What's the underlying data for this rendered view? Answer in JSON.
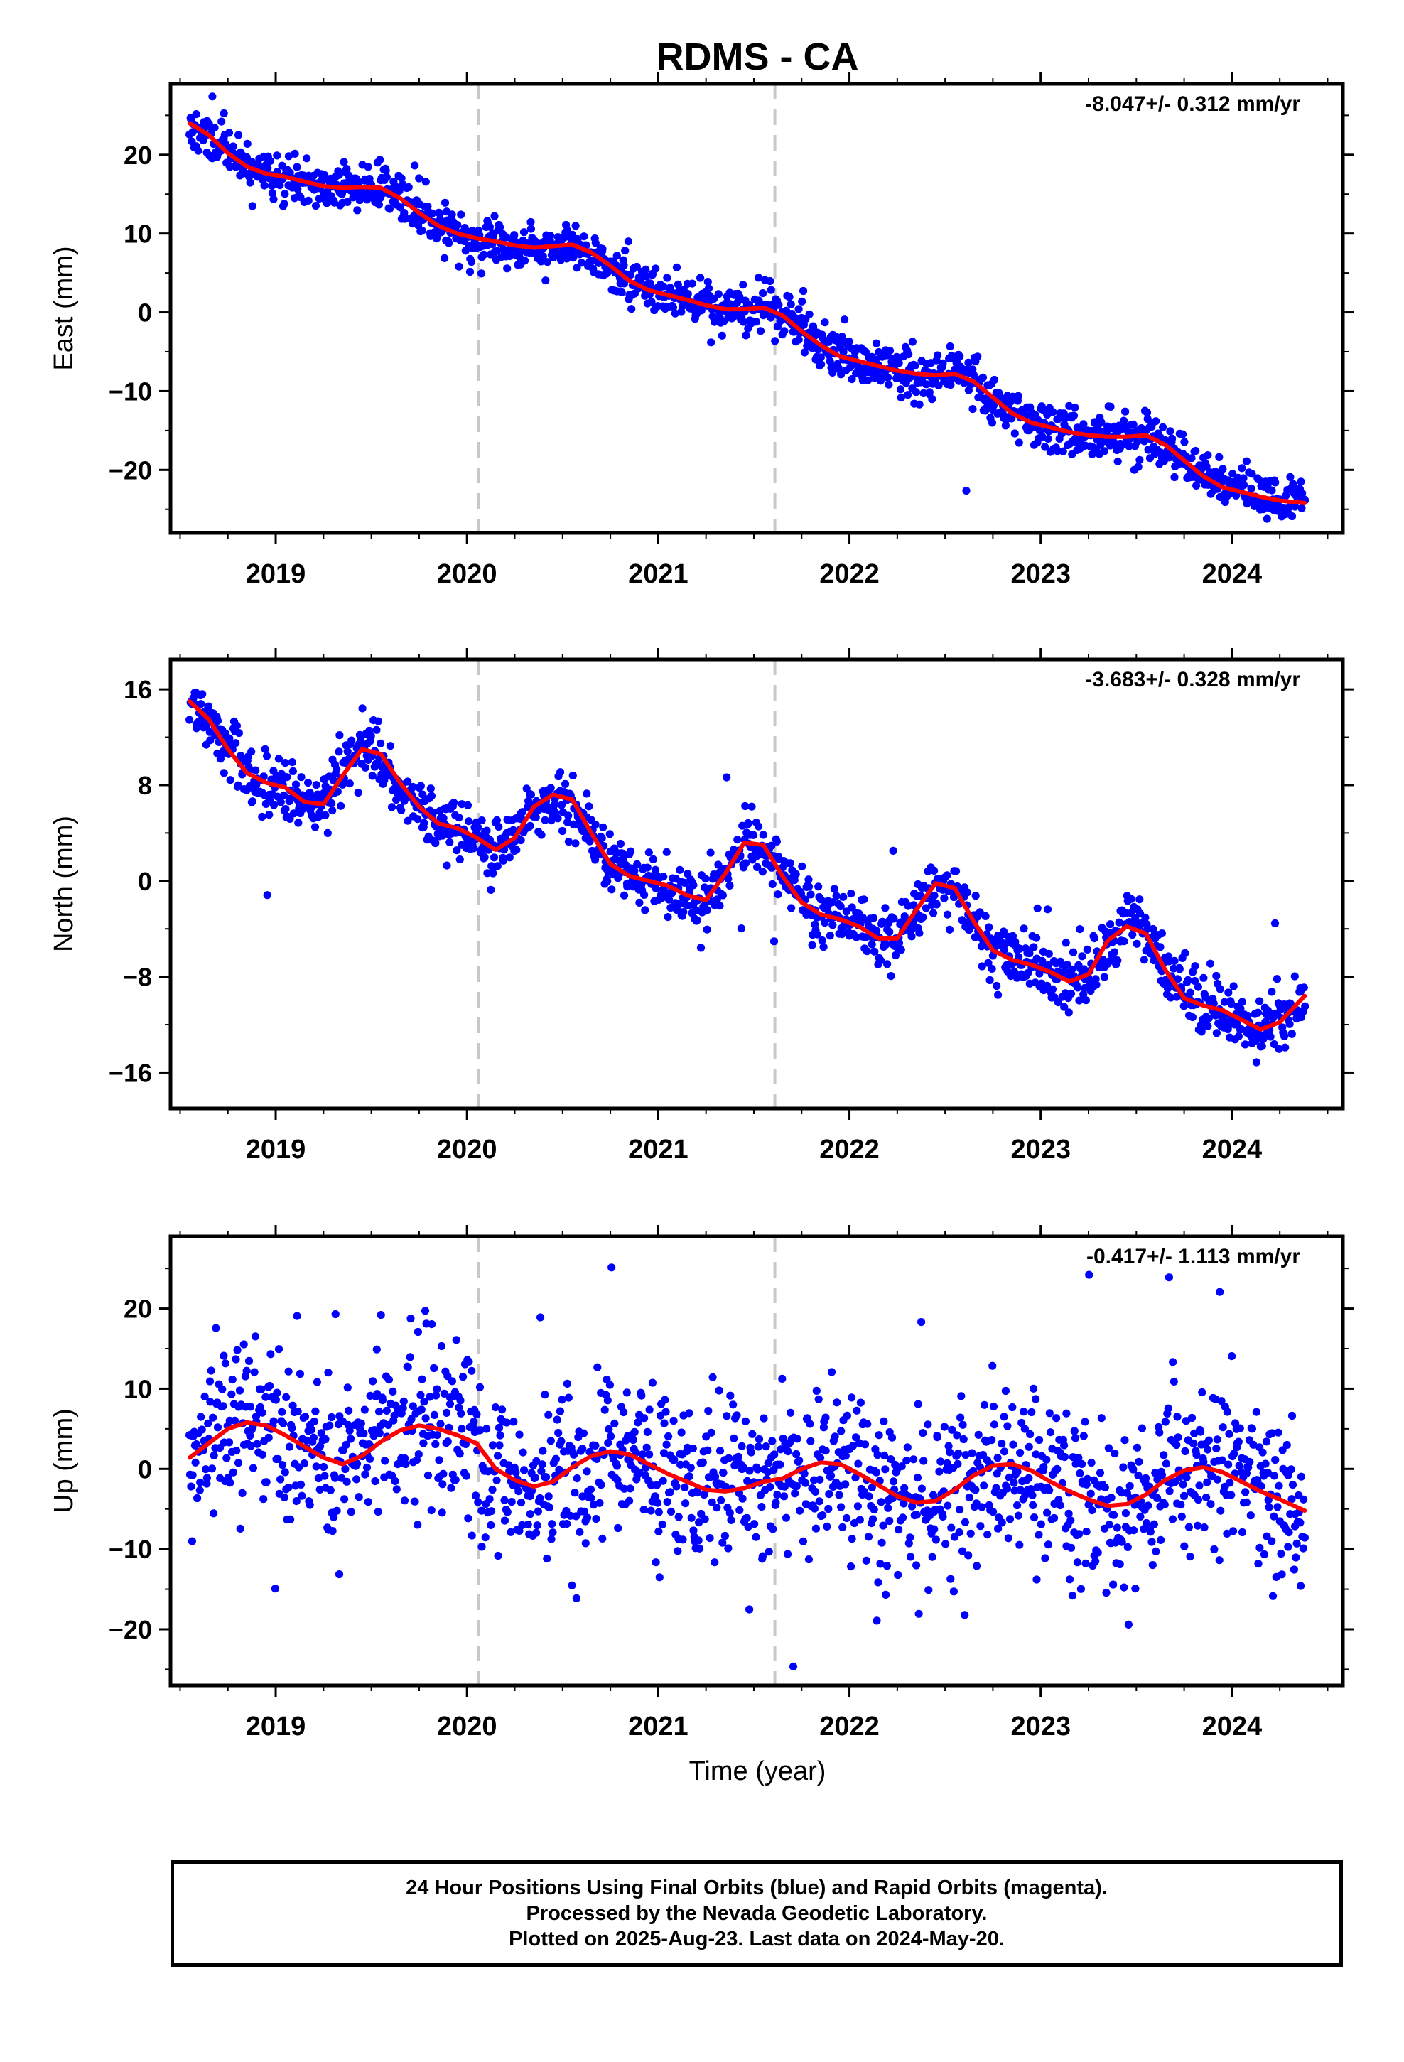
{
  "page": {
    "title": "RDMS - CA",
    "xlabel": "Time (year)"
  },
  "colors": {
    "points": "#0000ff",
    "fit": "#ff0000",
    "frame": "#000000",
    "breaks": "#c8c8c8"
  },
  "chart_data": [
    {
      "type": "scatter",
      "name_key": "east",
      "ylabel": "East (mm)",
      "rate": "-8.047+/- 0.312 mm/yr",
      "xlim": [
        2018.45,
        2024.58
      ],
      "ylim": [
        -28,
        29
      ],
      "yticks": [
        20,
        10,
        0,
        -10,
        -20
      ],
      "ytick_labels": [
        "20",
        "10",
        "0",
        "−10",
        "−20"
      ],
      "xticks": [
        2019,
        2020,
        2021,
        2022,
        2023,
        2024
      ],
      "xtick_labels": [
        "2019",
        "2020",
        "2021",
        "2022",
        "2023",
        "2024"
      ],
      "breaks": [
        2020.06,
        2021.61
      ],
      "fit": {
        "x": [
          2018.55,
          2018.65,
          2018.75,
          2018.85,
          2018.95,
          2019.05,
          2019.15,
          2019.25,
          2019.35,
          2019.45,
          2019.55,
          2019.65,
          2019.75,
          2019.85,
          2019.95,
          2020.05,
          2020.15,
          2020.25,
          2020.35,
          2020.45,
          2020.55,
          2020.65,
          2020.75,
          2020.85,
          2020.95,
          2021.05,
          2021.15,
          2021.25,
          2021.35,
          2021.45,
          2021.55,
          2021.65,
          2021.75,
          2021.85,
          2021.95,
          2022.05,
          2022.15,
          2022.25,
          2022.35,
          2022.45,
          2022.55,
          2022.65,
          2022.75,
          2022.85,
          2022.95,
          2023.05,
          2023.15,
          2023.25,
          2023.35,
          2023.45,
          2023.55,
          2023.65,
          2023.75,
          2023.85,
          2023.95,
          2024.05,
          2024.15,
          2024.25,
          2024.38
        ],
        "y": [
          24.0,
          22.5,
          20.2,
          18.5,
          17.6,
          17.2,
          16.6,
          16.0,
          15.8,
          15.9,
          15.8,
          14.5,
          12.6,
          11.0,
          10.0,
          9.4,
          9.0,
          8.5,
          8.2,
          8.4,
          8.6,
          7.6,
          5.9,
          4.0,
          2.8,
          2.2,
          1.6,
          0.9,
          0.4,
          0.4,
          0.6,
          -0.4,
          -2.4,
          -4.2,
          -5.6,
          -6.2,
          -6.8,
          -7.4,
          -7.8,
          -8.0,
          -7.8,
          -8.8,
          -10.8,
          -12.8,
          -14.0,
          -14.6,
          -15.2,
          -15.6,
          -15.8,
          -15.8,
          -15.6,
          -16.8,
          -18.8,
          -20.8,
          -22.2,
          -22.8,
          -23.4,
          -23.9,
          -24.2
        ]
      },
      "scatter": 1.5,
      "outliers": 0.01,
      "outlier_amp": 4,
      "seed": 11
    },
    {
      "type": "scatter",
      "name_key": "north",
      "ylabel": "North (mm)",
      "rate": "-3.683+/- 0.328 mm/yr",
      "xlim": [
        2018.45,
        2024.58
      ],
      "ylim": [
        -19,
        18.5
      ],
      "yticks": [
        16,
        8,
        0,
        -8,
        -16
      ],
      "ytick_labels": [
        "16",
        "8",
        "0",
        "−8",
        "−16"
      ],
      "xticks": [
        2019,
        2020,
        2021,
        2022,
        2023,
        2024
      ],
      "xtick_labels": [
        "2019",
        "2020",
        "2021",
        "2022",
        "2023",
        "2024"
      ],
      "breaks": [
        2020.06,
        2021.61
      ],
      "fit": {
        "x": [
          2018.55,
          2018.65,
          2018.75,
          2018.85,
          2018.95,
          2019.05,
          2019.15,
          2019.25,
          2019.35,
          2019.45,
          2019.55,
          2019.65,
          2019.75,
          2019.85,
          2019.95,
          2020.05,
          2020.15,
          2020.25,
          2020.35,
          2020.45,
          2020.55,
          2020.65,
          2020.75,
          2020.85,
          2020.95,
          2021.05,
          2021.15,
          2021.25,
          2021.35,
          2021.45,
          2021.55,
          2021.65,
          2021.75,
          2021.85,
          2021.95,
          2022.05,
          2022.15,
          2022.25,
          2022.35,
          2022.45,
          2022.55,
          2022.65,
          2022.75,
          2022.85,
          2022.95,
          2023.05,
          2023.15,
          2023.25,
          2023.35,
          2023.45,
          2023.55,
          2023.65,
          2023.75,
          2023.85,
          2023.95,
          2024.05,
          2024.15,
          2024.25,
          2024.38
        ],
        "y": [
          15.0,
          13.5,
          11.0,
          9.0,
          8.2,
          7.8,
          6.6,
          6.4,
          8.8,
          11.0,
          10.6,
          8.2,
          6.2,
          4.8,
          4.4,
          3.6,
          2.6,
          3.6,
          6.2,
          7.2,
          6.8,
          4.0,
          1.4,
          0.4,
          0.0,
          -0.4,
          -1.2,
          -1.6,
          0.6,
          3.2,
          3.0,
          0.4,
          -1.8,
          -2.8,
          -3.2,
          -3.8,
          -4.8,
          -4.8,
          -2.4,
          -0.2,
          -0.6,
          -3.4,
          -5.8,
          -6.6,
          -7.0,
          -7.6,
          -8.4,
          -7.8,
          -5.0,
          -3.8,
          -4.4,
          -7.4,
          -9.8,
          -10.4,
          -10.8,
          -11.6,
          -12.4,
          -11.8,
          -9.6
        ]
      },
      "scatter": 1.2,
      "outliers": 0.01,
      "outlier_amp": 4,
      "seed": 23
    },
    {
      "type": "scatter",
      "name_key": "up",
      "ylabel": "Up (mm)",
      "rate": "-0.417+/- 1.113 mm/yr",
      "xlim": [
        2018.45,
        2024.58
      ],
      "ylim": [
        -27,
        29
      ],
      "yticks": [
        20,
        10,
        0,
        -10,
        -20
      ],
      "ytick_labels": [
        "20",
        "10",
        "0",
        "−10",
        "−20"
      ],
      "xticks": [
        2019,
        2020,
        2021,
        2022,
        2023,
        2024
      ],
      "xtick_labels": [
        "2019",
        "2020",
        "2021",
        "2022",
        "2023",
        "2024"
      ],
      "breaks": [
        2020.06,
        2021.61
      ],
      "fit": {
        "x": [
          2018.55,
          2018.65,
          2018.75,
          2018.85,
          2018.95,
          2019.05,
          2019.15,
          2019.25,
          2019.35,
          2019.45,
          2019.55,
          2019.65,
          2019.75,
          2019.85,
          2019.95,
          2020.05,
          2020.15,
          2020.25,
          2020.35,
          2020.45,
          2020.55,
          2020.65,
          2020.75,
          2020.85,
          2020.95,
          2021.05,
          2021.15,
          2021.25,
          2021.35,
          2021.45,
          2021.55,
          2021.65,
          2021.75,
          2021.85,
          2021.95,
          2022.05,
          2022.15,
          2022.25,
          2022.35,
          2022.45,
          2022.55,
          2022.65,
          2022.75,
          2022.85,
          2022.95,
          2023.05,
          2023.15,
          2023.25,
          2023.35,
          2023.45,
          2023.55,
          2023.65,
          2023.75,
          2023.85,
          2023.95,
          2024.05,
          2024.15,
          2024.25,
          2024.38
        ],
        "y": [
          1.4,
          3.2,
          5.0,
          5.8,
          5.4,
          4.2,
          2.8,
          1.4,
          0.6,
          1.6,
          3.4,
          4.8,
          5.4,
          5.0,
          4.2,
          3.2,
          0.0,
          -1.4,
          -2.2,
          -1.6,
          0.2,
          1.6,
          2.2,
          1.8,
          0.6,
          -0.6,
          -1.6,
          -2.6,
          -2.8,
          -2.4,
          -1.6,
          -1.2,
          0.0,
          0.8,
          0.6,
          -0.6,
          -2.0,
          -3.4,
          -4.2,
          -4.0,
          -2.6,
          -0.8,
          0.4,
          0.6,
          -0.2,
          -1.6,
          -2.8,
          -3.8,
          -4.6,
          -4.4,
          -3.2,
          -1.4,
          -0.2,
          0.2,
          -0.4,
          -1.6,
          -2.8,
          -3.8,
          -5.2
        ]
      },
      "scatter": 5.2,
      "outliers": 0.02,
      "outlier_amp": 3,
      "seed": 37
    }
  ],
  "footer": {
    "line1": "24 Hour Positions Using Final Orbits (blue) and Rapid Orbits (magenta).",
    "line2": "Processed by the Nevada Geodetic Laboratory.",
    "line3": "Plotted on 2025-Aug-23. Last data on 2024-May-20."
  }
}
